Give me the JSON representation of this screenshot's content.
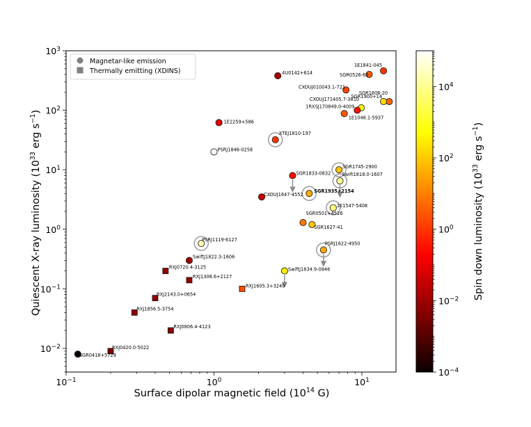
{
  "chart_data": {
    "type": "scatter",
    "title": "",
    "xlabel": "Surface dipolar magnetic field (10",
    "xlabel_exp": "14",
    "xlabel_unit": " G)",
    "ylabel": "Quiescent X-ray luminosity (10",
    "ylabel_exp": "33",
    "ylabel_unit": " erg s",
    "ylabel_unit_exp": "−1",
    "ylabel_close": ")",
    "xscale": "log",
    "yscale": "log",
    "xlim": [
      0.1,
      17
    ],
    "ylim": [
      0.004,
      1000
    ],
    "x_ticks": [
      {
        "value": 0.1,
        "base": "10",
        "exp": "−1"
      },
      {
        "value": 1,
        "base": "10",
        "exp": "0"
      },
      {
        "value": 10,
        "base": "10",
        "exp": "1"
      }
    ],
    "y_ticks": [
      {
        "value": 0.01,
        "base": "10",
        "exp": "−2"
      },
      {
        "value": 0.1,
        "base": "10",
        "exp": "−1"
      },
      {
        "value": 1,
        "base": "10",
        "exp": "0"
      },
      {
        "value": 10,
        "base": "10",
        "exp": "1"
      },
      {
        "value": 100,
        "base": "10",
        "exp": "2"
      },
      {
        "value": 1000,
        "base": "10",
        "exp": "3"
      }
    ],
    "legend": {
      "position": "top-left",
      "entries": [
        {
          "marker": "circle",
          "label": "Magnetar-like emission"
        },
        {
          "marker": "square",
          "label": "Thermally emitting (XDINS)"
        }
      ]
    },
    "colorbar": {
      "label": "Spin down luminosity (10",
      "label_exp": "33",
      "label_unit": " erg s",
      "label_unit_exp": "−1",
      "label_close": ")",
      "scale": "log",
      "range": [
        0.0001,
        100000
      ],
      "colormap": "hot",
      "ticks": [
        {
          "value": 0.0001,
          "base": "10",
          "exp": "−4"
        },
        {
          "value": 0.01,
          "base": "10",
          "exp": "−2"
        },
        {
          "value": 1,
          "base": "10",
          "exp": "0"
        },
        {
          "value": 100,
          "base": "10",
          "exp": "2"
        },
        {
          "value": 10000,
          "base": "10",
          "exp": "4"
        }
      ]
    },
    "points": [
      {
        "name": "4U0142+614",
        "x": 2.7,
        "y": 380,
        "edot": 0.012,
        "marker": "circle"
      },
      {
        "name": "1E1841-045",
        "x": 14.0,
        "y": 460,
        "edot": 1.0,
        "marker": "circle"
      },
      {
        "name": "SGR0526-66",
        "x": 11.2,
        "y": 400,
        "edot": 3.0,
        "marker": "circle"
      },
      {
        "name": "CXOUJ010043.1-721",
        "x": 7.8,
        "y": 220,
        "edot": 1.5,
        "marker": "circle"
      },
      {
        "name": "SGR1806-20",
        "x": 15.3,
        "y": 140,
        "edot": 4.0,
        "marker": "circle"
      },
      {
        "name": "SGR1900+14",
        "x": 14.0,
        "y": 140,
        "edot": 150,
        "marker": "circle"
      },
      {
        "name": "CXOUJ171405.7-3810",
        "x": 9.9,
        "y": 110,
        "edot": 400,
        "marker": "circle"
      },
      {
        "name": "1RXSJ170849.0-4009",
        "x": 9.3,
        "y": 100,
        "edot": 0.3,
        "marker": "circle"
      },
      {
        "name": "1E1048.1-5937",
        "x": 7.6,
        "y": 88,
        "edot": 3.0,
        "marker": "circle"
      },
      {
        "name": "1E2259+586",
        "x": 1.08,
        "y": 62,
        "edot": 0.055,
        "marker": "circle"
      },
      {
        "name": "XTEJ1810-197",
        "x": 2.6,
        "y": 32,
        "edot": 1.0,
        "marker": "circle",
        "ring": true
      },
      {
        "name": "PSRJ1846-0258",
        "x": 1.0,
        "y": 20,
        "edot": 100000,
        "marker": "circle"
      },
      {
        "name": "SGR1833-0832",
        "x": 3.4,
        "y": 8,
        "edot": 0.3,
        "marker": "circle",
        "arrow": true
      },
      {
        "name": "SGR1745-2900",
        "x": 7.0,
        "y": 10,
        "edot": 80,
        "marker": "circle",
        "ring": true
      },
      {
        "name": "Swift1818.0-1607",
        "x": 7.1,
        "y": 6.5,
        "edot": 10000,
        "marker": "circle",
        "ring": true,
        "arrow": true
      },
      {
        "name": "SGR1935+2154",
        "x": 4.4,
        "y": 4.0,
        "edot": 40,
        "marker": "circle",
        "ring": true,
        "bold": true
      },
      {
        "name": "CXOUJ1647-4552",
        "x": 2.1,
        "y": 3.5,
        "edot": 0.03,
        "marker": "circle"
      },
      {
        "name": "1E1547-5408",
        "x": 6.4,
        "y": 2.3,
        "edot": 6000,
        "marker": "circle",
        "ring": true
      },
      {
        "name": "SGR0501+4516",
        "x": 4.0,
        "y": 1.3,
        "edot": 8,
        "marker": "circle"
      },
      {
        "name": "SGR1627-41",
        "x": 4.6,
        "y": 1.2,
        "edot": 100,
        "marker": "circle"
      },
      {
        "name": "PSRJ1119-6127",
        "x": 0.82,
        "y": 0.58,
        "edot": 20000,
        "marker": "circle",
        "ring": true
      },
      {
        "name": "PSRJ1622-4950",
        "x": 5.5,
        "y": 0.45,
        "edot": 40,
        "marker": "circle",
        "ring": true,
        "arrow": true
      },
      {
        "name": "SwiftJ1822.3-1606",
        "x": 0.68,
        "y": 0.3,
        "edot": 0.008,
        "marker": "circle"
      },
      {
        "name": "SwiftJ1834.9-0846",
        "x": 3.0,
        "y": 0.2,
        "edot": 300,
        "marker": "circle",
        "arrow": true
      },
      {
        "name": "RXJ0720.4-3125",
        "x": 0.47,
        "y": 0.2,
        "edot": 0.006,
        "marker": "square"
      },
      {
        "name": "RXJ1308.6+2127",
        "x": 0.68,
        "y": 0.14,
        "edot": 0.006,
        "marker": "square"
      },
      {
        "name": "RXJ1605.3+3249",
        "x": 1.55,
        "y": 0.1,
        "edot": 2.0,
        "marker": "square"
      },
      {
        "name": "RXJ2143.0+0654",
        "x": 0.4,
        "y": 0.07,
        "edot": 0.005,
        "marker": "square"
      },
      {
        "name": "RXJ1856.5-3754",
        "x": 0.29,
        "y": 0.04,
        "edot": 0.005,
        "marker": "square"
      },
      {
        "name": "RXJ0806.4-4123",
        "x": 0.51,
        "y": 0.02,
        "edot": 0.005,
        "marker": "square"
      },
      {
        "name": "RXJ0420.0-5022",
        "x": 0.2,
        "y": 0.009,
        "edot": 0.003,
        "marker": "square"
      },
      {
        "name": "SGR0418+5729",
        "x": 0.12,
        "y": 0.008,
        "edot": 0.0001,
        "marker": "circle"
      }
    ]
  }
}
